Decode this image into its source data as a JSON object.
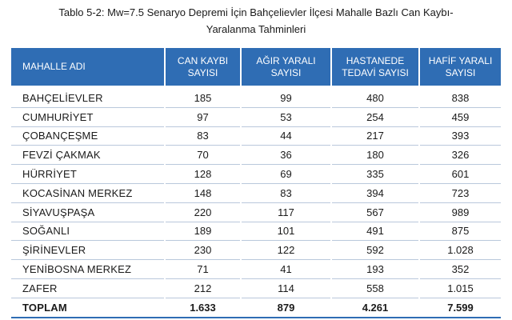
{
  "caption": {
    "line1": "Tablo 5-2: Mw=7.5 Senaryo Depremi İçin Bahçelievler İlçesi Mahalle Bazlı Can Kaybı-",
    "line2": "Yaralanma Tahminleri"
  },
  "colors": {
    "header_bg": "#2f6db4",
    "header_text": "#ffffff",
    "row_divider": "#b9c8dc"
  },
  "table": {
    "headers": [
      {
        "line1": "MAHALLE ADI",
        "line2": ""
      },
      {
        "line1": "CAN KAYBI",
        "line2": "SAYISI"
      },
      {
        "line1": "AĞIR YARALI",
        "line2": "SAYISI"
      },
      {
        "line1": "HASTANEDE",
        "line2": "TEDAVİ SAYISI"
      },
      {
        "line1": "HAFİF YARALI",
        "line2": "SAYISI"
      }
    ],
    "rows": [
      [
        "BAHÇELİEVLER",
        "185",
        "99",
        "480",
        "838"
      ],
      [
        "CUMHURİYET",
        "97",
        "53",
        "254",
        "459"
      ],
      [
        "ÇOBANÇEŞME",
        "83",
        "44",
        "217",
        "393"
      ],
      [
        "FEVZİ ÇAKMAK",
        "70",
        "36",
        "180",
        "326"
      ],
      [
        "HÜRRİYET",
        "128",
        "69",
        "335",
        "601"
      ],
      [
        "KOCASİNAN MERKEZ",
        "148",
        "83",
        "394",
        "723"
      ],
      [
        "SİYAVUŞPAŞA",
        "220",
        "117",
        "567",
        "989"
      ],
      [
        "SOĞANLI",
        "189",
        "101",
        "491",
        "875"
      ],
      [
        "ŞİRİNEVLER",
        "230",
        "122",
        "592",
        "1.028"
      ],
      [
        "YENİBOSNA MERKEZ",
        "71",
        "41",
        "193",
        "352"
      ],
      [
        "ZAFER",
        "212",
        "114",
        "558",
        "1.015"
      ]
    ],
    "total": [
      "TOPLAM",
      "1.633",
      "879",
      "4.261",
      "7.599"
    ]
  }
}
